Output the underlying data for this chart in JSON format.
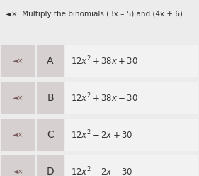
{
  "title": "◄×  Multiply the binomials (3x – 5) and (4x + 6).",
  "title_fontsize": 7.5,
  "background_color": "#ececec",
  "row_bg_expr": "#f2f2f2",
  "options": [
    {
      "label": "A",
      "expr": "$12x^2 + 38x + 30$"
    },
    {
      "label": "B",
      "expr": "$12x^2 + 38x - 30$"
    },
    {
      "label": "C",
      "expr": "$12x^2 - 2x + 30$"
    },
    {
      "label": "D",
      "expr": "$12x^2 - 2x - 30$"
    }
  ],
  "speaker_color": "#7a5c5c",
  "label_color": "#333333",
  "expr_color": "#333333",
  "icon_bg": "#d6d0d0",
  "label_bg": "#d6d0d0",
  "title_color": "#333333"
}
